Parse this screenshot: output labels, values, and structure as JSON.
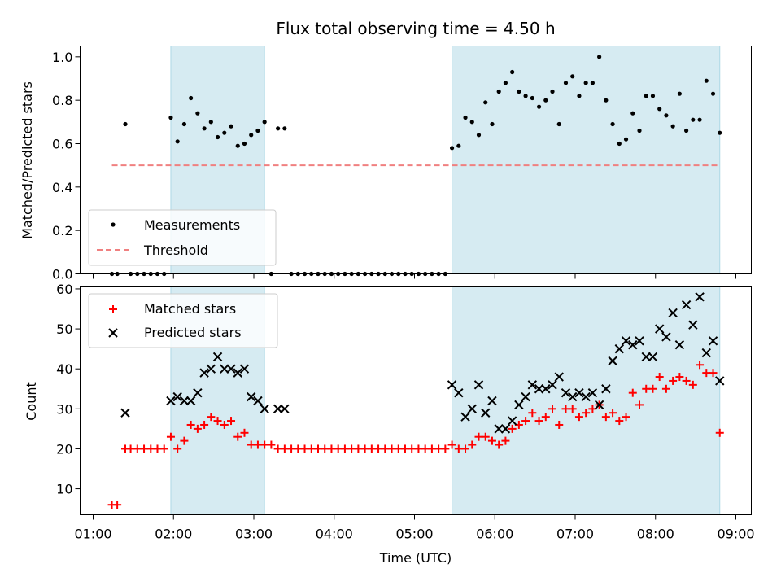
{
  "chart_data": [
    {
      "type": "scatter",
      "title": "Flux total observing time = 4.50 h",
      "ylabel": "Matched/Predicted stars",
      "xlabel": "",
      "xlim": [
        "01:00",
        "09:00"
      ],
      "ylim": [
        0,
        1.05
      ],
      "yticks": [
        "0.0",
        "0.2",
        "0.4",
        "0.6",
        "0.8",
        "1.0"
      ],
      "grid": false,
      "legend_position": "lower-left",
      "shaded_intervals": [
        [
          "01:58",
          "03:08"
        ],
        [
          "05:28",
          "08:48"
        ]
      ],
      "threshold": {
        "name": "Threshold",
        "value": 0.5,
        "x_range": [
          "01:14",
          "08:48"
        ],
        "color": "#f08080",
        "style": "dashed"
      },
      "series": [
        {
          "name": "Measurements",
          "marker": "dot",
          "color": "#000000",
          "points": [
            [
              "01:14",
              0
            ],
            [
              "01:18",
              0
            ],
            [
              "01:24",
              0.69
            ],
            [
              "01:28",
              0
            ],
            [
              "01:33",
              0
            ],
            [
              "01:38",
              0
            ],
            [
              "01:43",
              0
            ],
            [
              "01:48",
              0
            ],
            [
              "01:53",
              0
            ],
            [
              "01:58",
              0.72
            ],
            [
              "02:03",
              0.61
            ],
            [
              "02:08",
              0.69
            ],
            [
              "02:13",
              0.81
            ],
            [
              "02:18",
              0.74
            ],
            [
              "02:23",
              0.67
            ],
            [
              "02:28",
              0.7
            ],
            [
              "02:33",
              0.63
            ],
            [
              "02:38",
              0.65
            ],
            [
              "02:43",
              0.68
            ],
            [
              "02:48",
              0.59
            ],
            [
              "02:53",
              0.6
            ],
            [
              "02:58",
              0.64
            ],
            [
              "03:03",
              0.66
            ],
            [
              "03:08",
              0.7
            ],
            [
              "03:13",
              0
            ],
            [
              "03:18",
              0.67
            ],
            [
              "03:23",
              0.67
            ],
            [
              "03:28",
              0
            ],
            [
              "03:33",
              0
            ],
            [
              "03:38",
              0
            ],
            [
              "03:43",
              0
            ],
            [
              "03:48",
              0
            ],
            [
              "03:53",
              0
            ],
            [
              "03:58",
              0
            ],
            [
              "04:03",
              0
            ],
            [
              "04:08",
              0
            ],
            [
              "04:13",
              0
            ],
            [
              "04:18",
              0
            ],
            [
              "04:23",
              0
            ],
            [
              "04:28",
              0
            ],
            [
              "04:33",
              0
            ],
            [
              "04:38",
              0
            ],
            [
              "04:43",
              0
            ],
            [
              "04:48",
              0
            ],
            [
              "04:53",
              0
            ],
            [
              "04:58",
              0
            ],
            [
              "05:03",
              0
            ],
            [
              "05:08",
              0
            ],
            [
              "05:13",
              0
            ],
            [
              "05:18",
              0
            ],
            [
              "05:23",
              0
            ],
            [
              "05:28",
              0.58
            ],
            [
              "05:33",
              0.59
            ],
            [
              "05:38",
              0.72
            ],
            [
              "05:43",
              0.7
            ],
            [
              "05:48",
              0.64
            ],
            [
              "05:53",
              0.79
            ],
            [
              "05:58",
              0.69
            ],
            [
              "06:03",
              0.84
            ],
            [
              "06:08",
              0.88
            ],
            [
              "06:13",
              0.93
            ],
            [
              "06:18",
              0.84
            ],
            [
              "06:23",
              0.82
            ],
            [
              "06:28",
              0.81
            ],
            [
              "06:33",
              0.77
            ],
            [
              "06:38",
              0.8
            ],
            [
              "06:43",
              0.84
            ],
            [
              "06:48",
              0.69
            ],
            [
              "06:53",
              0.88
            ],
            [
              "06:58",
              0.91
            ],
            [
              "07:03",
              0.82
            ],
            [
              "07:08",
              0.88
            ],
            [
              "07:13",
              0.88
            ],
            [
              "07:18",
              1.0
            ],
            [
              "07:23",
              0.8
            ],
            [
              "07:28",
              0.69
            ],
            [
              "07:33",
              0.6
            ],
            [
              "07:38",
              0.62
            ],
            [
              "07:43",
              0.74
            ],
            [
              "07:48",
              0.66
            ],
            [
              "07:53",
              0.82
            ],
            [
              "07:58",
              0.82
            ],
            [
              "08:03",
              0.76
            ],
            [
              "08:08",
              0.73
            ],
            [
              "08:13",
              0.68
            ],
            [
              "08:18",
              0.83
            ],
            [
              "08:23",
              0.66
            ],
            [
              "08:28",
              0.71
            ],
            [
              "08:33",
              0.71
            ],
            [
              "08:38",
              0.89
            ],
            [
              "08:43",
              0.83
            ],
            [
              "08:48",
              0.65
            ]
          ]
        }
      ]
    },
    {
      "type": "scatter",
      "title": "",
      "ylabel": "Count",
      "xlabel": "Time (UTC)",
      "xlim": [
        "01:00",
        "09:00"
      ],
      "xticks": [
        "01:00",
        "02:00",
        "03:00",
        "04:00",
        "05:00",
        "06:00",
        "07:00",
        "08:00",
        "09:00"
      ],
      "ylim": [
        3.5,
        60.5
      ],
      "yticks": [
        "10",
        "20",
        "30",
        "40",
        "50",
        "60"
      ],
      "grid": false,
      "legend_position": "upper-left",
      "shaded_intervals": [
        [
          "01:58",
          "03:08"
        ],
        [
          "05:28",
          "08:48"
        ]
      ],
      "series": [
        {
          "name": "Matched stars",
          "marker": "plus",
          "color": "#ff0000",
          "points": [
            [
              "01:14",
              6
            ],
            [
              "01:18",
              6
            ],
            [
              "01:24",
              20
            ],
            [
              "01:28",
              20
            ],
            [
              "01:33",
              20
            ],
            [
              "01:38",
              20
            ],
            [
              "01:43",
              20
            ],
            [
              "01:48",
              20
            ],
            [
              "01:53",
              20
            ],
            [
              "01:58",
              23
            ],
            [
              "02:03",
              20
            ],
            [
              "02:08",
              22
            ],
            [
              "02:13",
              26
            ],
            [
              "02:18",
              25
            ],
            [
              "02:23",
              26
            ],
            [
              "02:28",
              28
            ],
            [
              "02:33",
              27
            ],
            [
              "02:38",
              26
            ],
            [
              "02:43",
              27
            ],
            [
              "02:48",
              23
            ],
            [
              "02:53",
              24
            ],
            [
              "02:58",
              21
            ],
            [
              "03:03",
              21
            ],
            [
              "03:08",
              21
            ],
            [
              "03:13",
              21
            ],
            [
              "03:18",
              20
            ],
            [
              "03:23",
              20
            ],
            [
              "03:28",
              20
            ],
            [
              "03:33",
              20
            ],
            [
              "03:38",
              20
            ],
            [
              "03:43",
              20
            ],
            [
              "03:48",
              20
            ],
            [
              "03:53",
              20
            ],
            [
              "03:58",
              20
            ],
            [
              "04:03",
              20
            ],
            [
              "04:08",
              20
            ],
            [
              "04:13",
              20
            ],
            [
              "04:18",
              20
            ],
            [
              "04:23",
              20
            ],
            [
              "04:28",
              20
            ],
            [
              "04:33",
              20
            ],
            [
              "04:38",
              20
            ],
            [
              "04:43",
              20
            ],
            [
              "04:48",
              20
            ],
            [
              "04:53",
              20
            ],
            [
              "04:58",
              20
            ],
            [
              "05:03",
              20
            ],
            [
              "05:08",
              20
            ],
            [
              "05:13",
              20
            ],
            [
              "05:18",
              20
            ],
            [
              "05:23",
              20
            ],
            [
              "05:28",
              21
            ],
            [
              "05:33",
              20
            ],
            [
              "05:38",
              20
            ],
            [
              "05:43",
              21
            ],
            [
              "05:48",
              23
            ],
            [
              "05:53",
              23
            ],
            [
              "05:58",
              22
            ],
            [
              "06:03",
              21
            ],
            [
              "06:08",
              22
            ],
            [
              "06:13",
              25
            ],
            [
              "06:18",
              26
            ],
            [
              "06:23",
              27
            ],
            [
              "06:28",
              29
            ],
            [
              "06:33",
              27
            ],
            [
              "06:38",
              28
            ],
            [
              "06:43",
              30
            ],
            [
              "06:48",
              26
            ],
            [
              "06:53",
              30
            ],
            [
              "06:58",
              30
            ],
            [
              "07:03",
              28
            ],
            [
              "07:08",
              29
            ],
            [
              "07:13",
              30
            ],
            [
              "07:18",
              31
            ],
            [
              "07:23",
              28
            ],
            [
              "07:28",
              29
            ],
            [
              "07:33",
              27
            ],
            [
              "07:38",
              28
            ],
            [
              "07:43",
              34
            ],
            [
              "07:48",
              31
            ],
            [
              "07:53",
              35
            ],
            [
              "07:58",
              35
            ],
            [
              "08:03",
              38
            ],
            [
              "08:08",
              35
            ],
            [
              "08:13",
              37
            ],
            [
              "08:18",
              38
            ],
            [
              "08:23",
              37
            ],
            [
              "08:28",
              36
            ],
            [
              "08:33",
              41
            ],
            [
              "08:38",
              39
            ],
            [
              "08:43",
              39
            ],
            [
              "08:48",
              24
            ]
          ]
        },
        {
          "name": "Predicted stars",
          "marker": "x",
          "color": "#000000",
          "points": [
            [
              "01:24",
              29
            ],
            [
              "01:58",
              32
            ],
            [
              "02:03",
              33
            ],
            [
              "02:08",
              32
            ],
            [
              "02:13",
              32
            ],
            [
              "02:18",
              34
            ],
            [
              "02:23",
              39
            ],
            [
              "02:28",
              40
            ],
            [
              "02:33",
              43
            ],
            [
              "02:38",
              40
            ],
            [
              "02:43",
              40
            ],
            [
              "02:48",
              39
            ],
            [
              "02:53",
              40
            ],
            [
              "02:58",
              33
            ],
            [
              "03:03",
              32
            ],
            [
              "03:08",
              30
            ],
            [
              "03:18",
              30
            ],
            [
              "03:23",
              30
            ],
            [
              "05:28",
              36
            ],
            [
              "05:33",
              34
            ],
            [
              "05:38",
              28
            ],
            [
              "05:43",
              30
            ],
            [
              "05:48",
              36
            ],
            [
              "05:53",
              29
            ],
            [
              "05:58",
              32
            ],
            [
              "06:03",
              25
            ],
            [
              "06:08",
              25
            ],
            [
              "06:13",
              27
            ],
            [
              "06:18",
              31
            ],
            [
              "06:23",
              33
            ],
            [
              "06:28",
              36
            ],
            [
              "06:33",
              35
            ],
            [
              "06:38",
              35
            ],
            [
              "06:43",
              36
            ],
            [
              "06:48",
              38
            ],
            [
              "06:53",
              34
            ],
            [
              "06:58",
              33
            ],
            [
              "07:03",
              34
            ],
            [
              "07:08",
              33
            ],
            [
              "07:13",
              34
            ],
            [
              "07:18",
              31
            ],
            [
              "07:23",
              35
            ],
            [
              "07:28",
              42
            ],
            [
              "07:33",
              45
            ],
            [
              "07:38",
              47
            ],
            [
              "07:43",
              46
            ],
            [
              "07:48",
              47
            ],
            [
              "07:53",
              43
            ],
            [
              "07:58",
              43
            ],
            [
              "08:03",
              50
            ],
            [
              "08:08",
              48
            ],
            [
              "08:13",
              54
            ],
            [
              "08:18",
              46
            ],
            [
              "08:23",
              56
            ],
            [
              "08:28",
              51
            ],
            [
              "08:33",
              58
            ],
            [
              "08:38",
              44
            ],
            [
              "08:43",
              47
            ],
            [
              "08:48",
              37
            ]
          ]
        }
      ]
    }
  ]
}
